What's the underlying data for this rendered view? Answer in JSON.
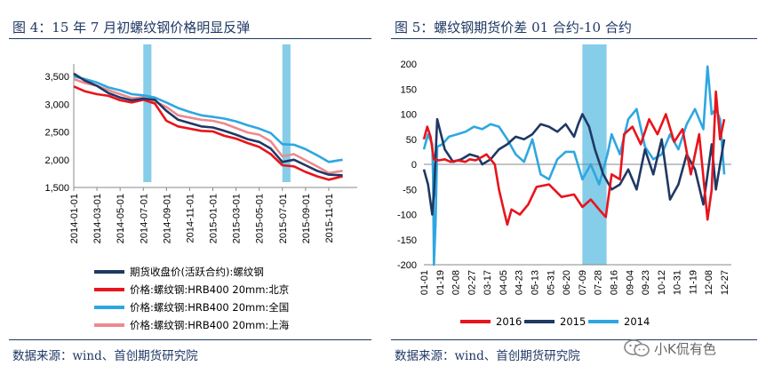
{
  "left": {
    "title": "图 4：15 年 7 月初螺纹钢价格明显反弹",
    "source": "数据来源：wind、首创期货研究院"
  },
  "right": {
    "title": "图 5：螺纹钢期货价差 01 合约-10 合约",
    "source": "数据来源：wind、首创期货研究院"
  },
  "watermark": {
    "text": "小K侃有色",
    "icon": "wechat-icon"
  },
  "colors": {
    "navy": "#1f3864",
    "red": "#e8141c",
    "blue": "#2ea7e0",
    "pink": "#ec8a8f",
    "darknavy": "#173a77",
    "shade": "#85cde9"
  },
  "chart_data": [
    {
      "type": "line",
      "xlabel": "",
      "ylabel": "",
      "ylim": [
        1500,
        3600
      ],
      "yticks": [
        "3,500",
        "3,000",
        "2,500",
        "2,000",
        "1,500"
      ],
      "ytick_values": [
        3500,
        3000,
        2500,
        2000,
        1500
      ],
      "xticks": [
        "2014-01-01",
        "2014-03-01",
        "2014-05-01",
        "2014-07-01",
        "2014-09-01",
        "2014-11-01",
        "2015-01-01",
        "2015-03-01",
        "2015-05-01",
        "2015-07-01",
        "2015-09-01",
        "2015-11-01"
      ],
      "xtick_months": [
        0,
        2,
        4,
        6,
        8,
        10,
        12,
        14,
        16,
        18,
        20,
        22
      ],
      "shaded_months": [
        [
          6.0,
          6.7
        ],
        [
          18.0,
          18.7
        ]
      ],
      "grid": false,
      "legend_position": "bottom",
      "series": [
        {
          "name": "期货收盘价(活跃合约):螺纹钢",
          "color": "#1f3864",
          "months": [
            0,
            1,
            2,
            3,
            4,
            5,
            6,
            7,
            8,
            9,
            10,
            11,
            12,
            13,
            14,
            15,
            16,
            17,
            18,
            19,
            20,
            21,
            22,
            23.2
          ],
          "values": [
            3550,
            3420,
            3330,
            3200,
            3120,
            3070,
            3100,
            3080,
            2880,
            2720,
            2660,
            2600,
            2580,
            2520,
            2450,
            2370,
            2320,
            2200,
            1960,
            2000,
            1900,
            1800,
            1730,
            1720
          ]
        },
        {
          "name": "价格:螺纹钢:HRB400 20mm:北京",
          "color": "#e8141c",
          "months": [
            0,
            1,
            2,
            3,
            4,
            5,
            6,
            7,
            8,
            9,
            10,
            11,
            12,
            13,
            14,
            15,
            16,
            17,
            18,
            19,
            20,
            21,
            22,
            23.2
          ],
          "values": [
            3320,
            3230,
            3180,
            3150,
            3070,
            3030,
            3080,
            3010,
            2700,
            2600,
            2560,
            2520,
            2510,
            2430,
            2380,
            2300,
            2230,
            2100,
            1900,
            1880,
            1780,
            1700,
            1640,
            1700
          ]
        },
        {
          "name": "价格:螺纹钢:HRB400 20mm:全国",
          "color": "#2ea7e0",
          "months": [
            0,
            1,
            2,
            3,
            4,
            5,
            6,
            7,
            8,
            9,
            10,
            11,
            12,
            13,
            14,
            15,
            16,
            17,
            18,
            19,
            20,
            21,
            22,
            23.2
          ],
          "values": [
            3500,
            3450,
            3390,
            3300,
            3250,
            3180,
            3160,
            3120,
            3030,
            2930,
            2860,
            2800,
            2770,
            2740,
            2690,
            2620,
            2560,
            2480,
            2280,
            2270,
            2190,
            2080,
            1960,
            2000
          ]
        },
        {
          "name": "价格:螺纹钢:HRB400 20mm:上海",
          "color": "#ec8a8f",
          "months": [
            0,
            1,
            2,
            3,
            4,
            5,
            6,
            7,
            8,
            9,
            10,
            11,
            12,
            13,
            14,
            15,
            16,
            17,
            18,
            19,
            20,
            21,
            22,
            23.2
          ],
          "values": [
            3450,
            3380,
            3330,
            3250,
            3180,
            3110,
            3120,
            3050,
            2950,
            2800,
            2760,
            2720,
            2700,
            2650,
            2570,
            2490,
            2450,
            2330,
            2060,
            2100,
            1990,
            1880,
            1760,
            1800
          ]
        }
      ]
    },
    {
      "type": "line",
      "xlabel": "",
      "ylabel": "",
      "ylim": [
        -200,
        200
      ],
      "yticks": [
        "200",
        "150",
        "100",
        "50",
        "0",
        "-50",
        "-100",
        "-150",
        "-200"
      ],
      "ytick_values": [
        200,
        150,
        100,
        50,
        0,
        -50,
        -100,
        -150,
        -200
      ],
      "xticks": [
        "01-01",
        "01-19",
        "02-08",
        "02-27",
        "03-17",
        "04-05",
        "04-23",
        "05-13",
        "05-31",
        "06-20",
        "07-09",
        "07-28",
        "08-16",
        "09-04",
        "09-23",
        "10-12",
        "10-31",
        "11-19",
        "12-08",
        "12-27"
      ],
      "shaded_days": [
        190,
        219
      ],
      "grid": false,
      "legend_position": "bottom",
      "series": [
        {
          "name": "2016",
          "color": "#e8141c",
          "days": [
            0,
            4,
            8,
            12,
            18,
            25,
            32,
            40,
            50,
            55,
            62,
            70,
            75,
            85,
            90,
            97,
            100,
            105,
            115,
            125,
            135,
            150,
            165,
            180,
            190,
            200,
            210,
            218,
            225,
            235,
            240,
            250,
            260,
            270,
            280,
            290,
            300,
            310,
            320,
            330,
            340,
            345,
            350,
            355,
            360
          ],
          "values": [
            50,
            75,
            55,
            10,
            8,
            10,
            5,
            8,
            5,
            10,
            8,
            15,
            20,
            0,
            -50,
            -100,
            -120,
            -90,
            -100,
            -80,
            -45,
            -40,
            -65,
            -60,
            -85,
            -70,
            -90,
            -105,
            -20,
            -30,
            60,
            75,
            40,
            90,
            60,
            100,
            45,
            70,
            -20,
            60,
            -110,
            -50,
            145,
            50,
            90
          ]
        },
        {
          "name": "2015",
          "color": "#1f3864",
          "days": [
            0,
            5,
            10,
            12,
            16,
            25,
            35,
            45,
            55,
            65,
            70,
            80,
            90,
            100,
            110,
            120,
            130,
            140,
            150,
            160,
            170,
            180,
            185,
            190,
            198,
            205,
            215,
            225,
            235,
            245,
            255,
            265,
            275,
            285,
            295,
            305,
            315,
            325,
            335,
            345,
            350,
            360
          ],
          "values": [
            -10,
            -40,
            -100,
            -60,
            90,
            30,
            5,
            10,
            20,
            15,
            0,
            10,
            30,
            40,
            55,
            50,
            60,
            80,
            75,
            65,
            80,
            55,
            80,
            100,
            75,
            30,
            -20,
            -50,
            -40,
            -10,
            -50,
            30,
            -20,
            50,
            -70,
            -40,
            20,
            -10,
            -80,
            40,
            -50,
            50
          ]
        },
        {
          "name": "2014",
          "color": "#2ea7e0",
          "days": [
            0,
            5,
            10,
            11,
            12,
            14,
            16,
            22,
            30,
            40,
            50,
            60,
            70,
            80,
            90,
            100,
            110,
            120,
            130,
            140,
            150,
            160,
            170,
            180,
            190,
            200,
            210,
            220,
            225,
            235,
            245,
            255,
            265,
            275,
            285,
            295,
            305,
            315,
            325,
            335,
            340,
            345,
            350,
            355,
            360
          ],
          "values": [
            30,
            60,
            40,
            -20,
            -200,
            -120,
            35,
            40,
            55,
            60,
            65,
            75,
            70,
            80,
            75,
            50,
            20,
            5,
            50,
            -20,
            -30,
            10,
            25,
            25,
            -30,
            0,
            -40,
            20,
            60,
            20,
            90,
            110,
            35,
            10,
            20,
            60,
            30,
            80,
            110,
            70,
            195,
            100,
            110,
            90,
            -20
          ]
        }
      ]
    }
  ]
}
